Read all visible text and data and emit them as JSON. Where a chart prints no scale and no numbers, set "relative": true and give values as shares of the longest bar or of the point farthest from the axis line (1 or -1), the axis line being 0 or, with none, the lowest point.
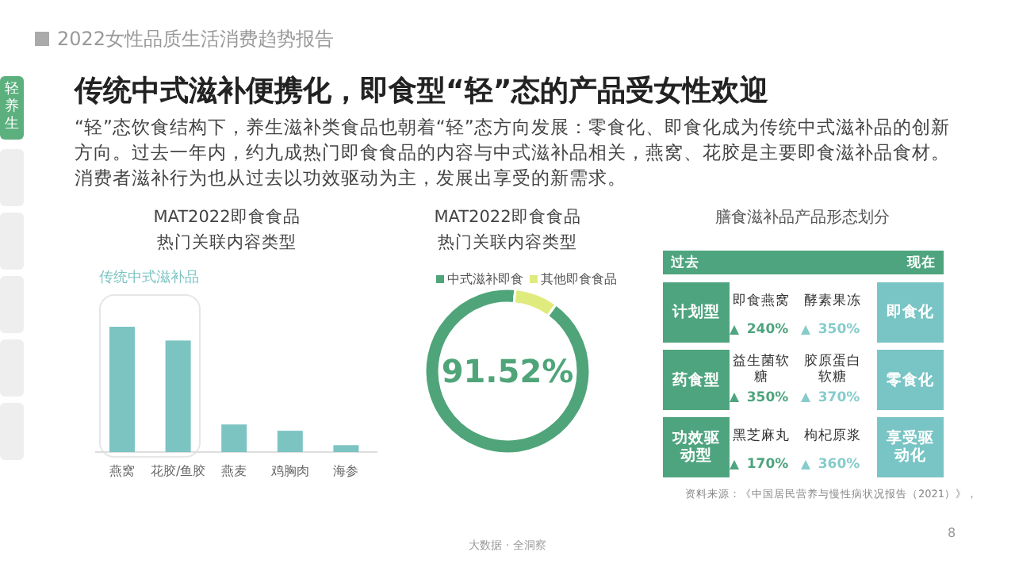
{
  "chart_data": [
    {
      "type": "other",
      "title": "传统中式滋补便携化，即食型“轻”态的产品受女性欢迎",
      "subtitle": "“轻”态饮食结构下，养生滋补类食品也朝着“轻”态方向发展：零食化、即食化成为传统中式滋补品的创新方向。过去一年内，约九成热门即食食品的内容与中式滋补品相关，燕窝、花胶是主要即食滋补品食材。消费者滋补行为也从过去以功效驱动为主，发展出享受的新需求。",
      "annotations": [
        "2022女性品质生活消费趋势报告",
        "轻养生",
        "大数据 · 全洞察",
        "8"
      ]
    },
    {
      "type": "bar",
      "title": "MAT2022即食食品",
      "subtitle": "热门关联内容类型",
      "categories": [
        "燕窝",
        "花胶/鱼胶",
        "燕麦",
        "鸡胸肉",
        "海参"
      ],
      "values": [
        1,
        0.89,
        0.22,
        0.17,
        0.055
      ],
      "color": "#7cc4c2",
      "relative": true,
      "annotations": [
        "传统中式滋补品"
      ]
    },
    {
      "type": "donut",
      "title": "MAT2022即食食品",
      "subtitle": "热门关联内容类型",
      "categories": [
        "中式滋补即食",
        "其他即食食品"
      ],
      "values": [
        91.52,
        8.48
      ],
      "colors": [
        "#4fa579",
        "#e0eb7e"
      ],
      "legend": "top",
      "value_labels": [
        "91.52%",
        null
      ]
    },
    {
      "type": "other",
      "title": "膳食滋补品产品形态划分",
      "annotations": [
        "过去",
        "现在",
        "计划型",
        "即食燕窝",
        "240%",
        "酵素果冻",
        "350%",
        "即食化",
        "药食型",
        "益生菌软糖",
        "350%",
        "胶原蛋白软糖",
        "370%",
        "零食化",
        "功效驱动型",
        "黑芝麻丸",
        "170%",
        "枸杞原浆",
        "360%",
        "享受驱动化",
        "资料来源：《中国居民营养与慢性病状况报告（2021）》，"
      ]
    }
  ]
}
